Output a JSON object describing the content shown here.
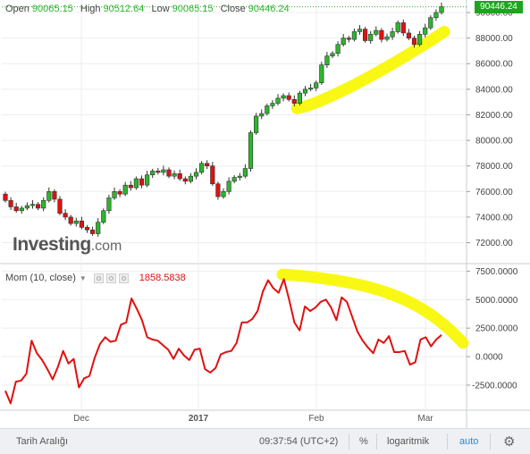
{
  "chart_data": [
    {
      "type": "candlestick",
      "title": "",
      "ohlc_labels": [
        "Open",
        "High",
        "Low",
        "Close"
      ],
      "ohlc_values": [
        "90065.15",
        "90512.64",
        "90065.15",
        "90446.24"
      ],
      "last_price": "90446.24",
      "ylim": [
        70500,
        90700
      ],
      "yticks": [
        "72000.00",
        "74000.00",
        "76000.00",
        "78000.00",
        "80000.00",
        "82000.00",
        "84000.00",
        "86000.00",
        "88000.00",
        "90000.00"
      ],
      "x_labels": [
        "Dec",
        "2017",
        "Feb",
        "Mar"
      ],
      "up_color": "#2db52d",
      "down_color": "#e01010",
      "closes": [
        75300,
        74800,
        74500,
        74700,
        74900,
        75000,
        74700,
        75300,
        76000,
        75400,
        74300,
        74000,
        73500,
        73700,
        73200,
        73000,
        72700,
        73600,
        74500,
        75500,
        76000,
        75800,
        76500,
        76300,
        77000,
        76500,
        77300,
        77600,
        77500,
        77700,
        77200,
        77400,
        77000,
        76800,
        77200,
        77500,
        78200,
        78000,
        76600,
        75600,
        76000,
        76800,
        77100,
        77200,
        77800,
        80600,
        81900,
        82100,
        82700,
        82900,
        83300,
        83500,
        83200,
        82900,
        83700,
        84000,
        84100,
        84500,
        85900,
        86600,
        86800,
        87500,
        88000,
        87900,
        88500,
        88700,
        87800,
        88300,
        88600,
        87900,
        88100,
        88500,
        89200,
        88400,
        88000,
        87500,
        88300,
        88800,
        89600,
        90000,
        90446
      ],
      "highlight_color": "#f7f700"
    },
    {
      "type": "line",
      "title": "",
      "indicator_label": "Mom (10, close)",
      "indicator_value": "1858.5838",
      "ylim": [
        -4700,
        8000
      ],
      "yticks": [
        "-2500.0000",
        "0.0000",
        "2500.0000",
        "5000.0000",
        "7500.0000"
      ],
      "series": [
        {
          "color": "#e01010",
          "values": [
            -3000,
            -4100,
            -2200,
            -2100,
            -1500,
            1400,
            300,
            -300,
            -1100,
            -2000,
            -900,
            500,
            -600,
            -200,
            -2700,
            -1900,
            -1700,
            -100,
            1100,
            1700,
            1300,
            1400,
            2800,
            3000,
            5100,
            4200,
            3200,
            1700,
            1500,
            1400,
            1000,
            600,
            -200,
            700,
            100,
            -300,
            600,
            700,
            -1100,
            -1400,
            -1000,
            200,
            400,
            500,
            1200,
            3000,
            3000,
            3300,
            4000,
            5700,
            6700,
            6000,
            5600,
            6800,
            5000,
            3000,
            2300,
            4400,
            4000,
            4300,
            4800,
            5000,
            4300,
            3200,
            5200,
            4800,
            3500,
            2200,
            1400,
            800,
            300,
            1500,
            1200,
            1800,
            400,
            400,
            500,
            -700,
            -500,
            1500,
            1700,
            900,
            1500,
            1900
          ]
        }
      ]
    }
  ],
  "logo": {
    "brand": "Investing",
    "suffix": ".com"
  },
  "footer": {
    "range_label": "Tarih Aralığı",
    "time": "09:37:54 (UTC+2)",
    "percent": "%",
    "log": "logaritmik",
    "auto": "auto",
    "gear_icon": "gear-icon"
  }
}
